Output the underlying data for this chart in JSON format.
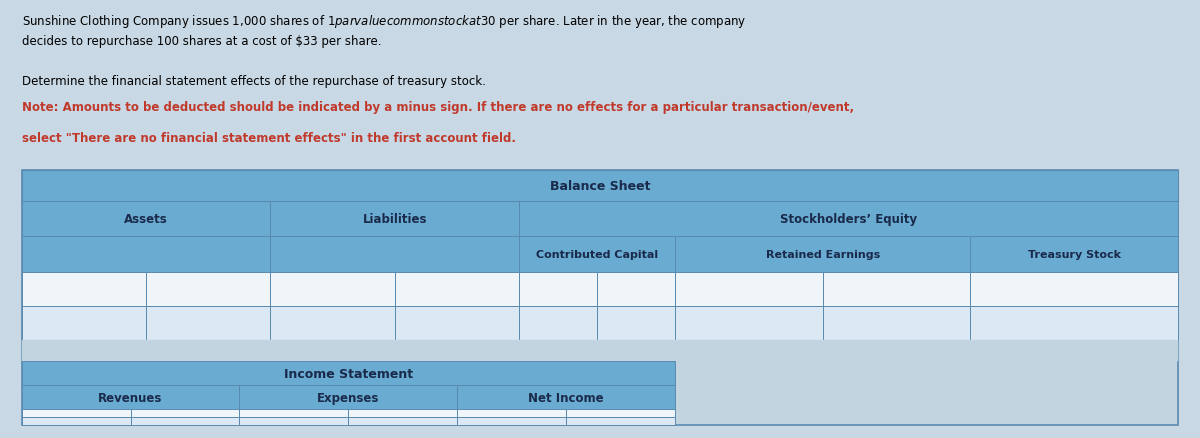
{
  "title_line1": "Sunshine Clothing Company issues 1,000 shares of $1 par value common stock at $30 per share. Later in the year, the company",
  "title_line2": "decides to repurchase 100 shares at a cost of $33 per share.",
  "instruction_line1": "Determine the financial statement effects of the repurchase of treasury stock.",
  "instruction_line2_bold": "Note: Amounts to be deducted should be indicated by a minus sign. If there are no effects for a particular transaction/event,",
  "instruction_line3_bold": "select \"There are no financial statement effects\" in the first account field.",
  "header_bg": "#6aabd2",
  "subheader_bg": "#89bfdf",
  "row_bg_light": "#dce9f5",
  "row_bg_white": "#f0f5fa",
  "border_color": "#5a8ab0",
  "outer_bg": "#c8d8e4",
  "table_outer_bg": "#c2d4e0",
  "balance_sheet_label": "Balance Sheet",
  "stockholders_equity_label": "Stockholders’ Equity",
  "assets_label": "Assets",
  "liabilities_label": "Liabilities",
  "contributed_capital_label": "Contributed Capital",
  "retained_earnings_label": "Retained Earnings",
  "treasury_stock_label": "Treasury Stock",
  "income_statement_label": "Income Statement",
  "revenues_label": "Revenues",
  "expenses_label": "Expenses",
  "net_income_label": "Net Income",
  "fig_width": 12.0,
  "fig_height": 4.39,
  "dpi": 100
}
